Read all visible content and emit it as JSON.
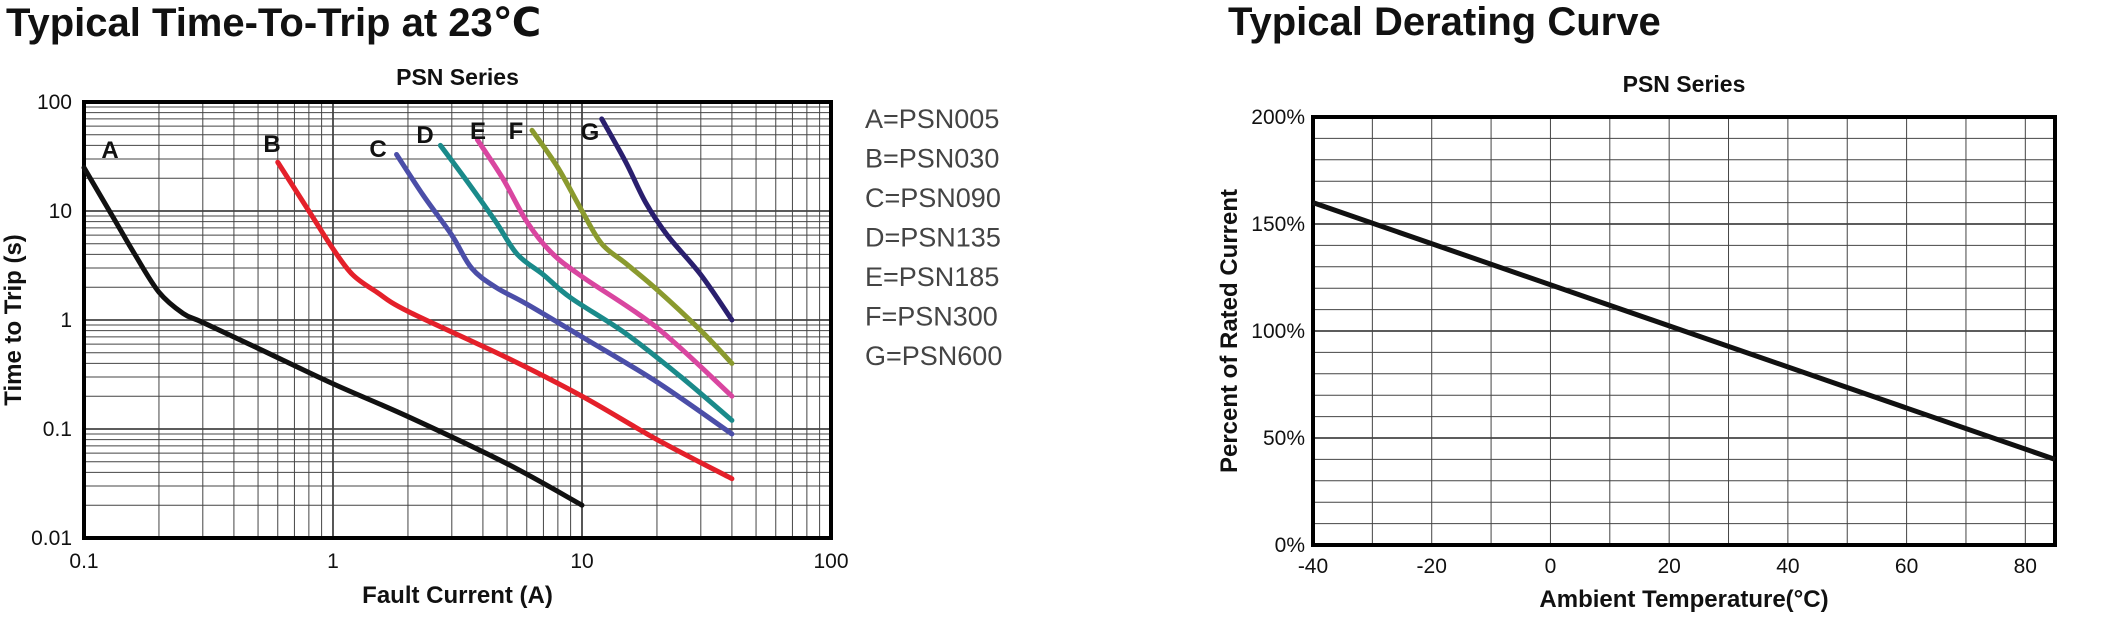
{
  "headings": {
    "left": "Typical Time-To-Trip at 23℃",
    "right": "Typical Derating Curve"
  },
  "chart_data": [
    {
      "type": "line",
      "title": "PSN Series",
      "xlabel": "Fault Current (A)",
      "ylabel": "Time to Trip (s)",
      "xscale": "log",
      "yscale": "log",
      "xlim": [
        0.1,
        100
      ],
      "ylim": [
        0.01,
        100
      ],
      "xticks": [
        "0.1",
        "1",
        "10",
        "100"
      ],
      "yticks": [
        "0.01",
        "0.1",
        "1",
        "10",
        "100"
      ],
      "grid": true,
      "legend_position": "right",
      "legend": [
        "A=PSN005",
        "B=PSN030",
        "C=PSN090",
        "D=PSN135",
        "E=PSN185",
        "F=PSN300",
        "G=PSN600"
      ],
      "series": [
        {
          "name": "A",
          "color": "#111111",
          "points": [
            [
              0.1,
              25
            ],
            [
              0.13,
              9
            ],
            [
              0.16,
              4
            ],
            [
              0.2,
              1.8
            ],
            [
              0.25,
              1.15
            ],
            [
              0.3,
              0.95
            ],
            [
              0.5,
              0.55
            ],
            [
              1,
              0.26
            ],
            [
              2,
              0.13
            ],
            [
              5,
              0.048
            ],
            [
              10,
              0.02
            ]
          ]
        },
        {
          "name": "B",
          "color": "#e4202a",
          "points": [
            [
              0.6,
              28
            ],
            [
              0.8,
              10
            ],
            [
              1,
              4.5
            ],
            [
              1.2,
              2.6
            ],
            [
              1.5,
              1.8
            ],
            [
              2,
              1.2
            ],
            [
              5,
              0.45
            ],
            [
              10,
              0.2
            ],
            [
              20,
              0.08
            ],
            [
              40,
              0.035
            ]
          ]
        },
        {
          "name": "C",
          "color": "#4b4ea8",
          "points": [
            [
              1.8,
              33
            ],
            [
              2.3,
              14
            ],
            [
              3,
              6
            ],
            [
              3.6,
              3
            ],
            [
              4.5,
              2
            ],
            [
              6,
              1.4
            ],
            [
              10,
              0.7
            ],
            [
              20,
              0.27
            ],
            [
              40,
              0.09
            ]
          ]
        },
        {
          "name": "D",
          "color": "#1a8a8a",
          "points": [
            [
              2.7,
              40
            ],
            [
              3.5,
              18
            ],
            [
              4.5,
              8
            ],
            [
              5.5,
              4
            ],
            [
              7,
              2.6
            ],
            [
              9,
              1.6
            ],
            [
              15,
              0.75
            ],
            [
              25,
              0.3
            ],
            [
              40,
              0.12
            ]
          ]
        },
        {
          "name": "E",
          "color": "#d946a0",
          "points": [
            [
              3.8,
              45
            ],
            [
              4.8,
              20
            ],
            [
              6,
              8
            ],
            [
              7.5,
              4.2
            ],
            [
              10,
              2.5
            ],
            [
              20,
              0.85
            ],
            [
              40,
              0.2
            ]
          ]
        },
        {
          "name": "F",
          "color": "#8a9a2e",
          "points": [
            [
              6.3,
              55
            ],
            [
              8,
              25
            ],
            [
              10,
              10
            ],
            [
              12,
              5
            ],
            [
              15,
              3.3
            ],
            [
              20,
              1.9
            ],
            [
              30,
              0.8
            ],
            [
              40,
              0.4
            ]
          ]
        },
        {
          "name": "G",
          "color": "#2a1f6e",
          "points": [
            [
              12,
              70
            ],
            [
              15,
              28
            ],
            [
              18,
              12
            ],
            [
              22,
              6
            ],
            [
              30,
              2.6
            ],
            [
              40,
              1
            ]
          ]
        }
      ]
    },
    {
      "type": "line",
      "title": "PSN Series",
      "xlabel": "Ambient Temperature(°C)",
      "ylabel": "Percent of Rated Current",
      "xlim": [
        -40,
        85
      ],
      "ylim": [
        0,
        200
      ],
      "xticks": [
        "-40",
        "-20",
        "0",
        "20",
        "40",
        "60",
        "80"
      ],
      "yticks": [
        "0%",
        "50%",
        "100%",
        "150%",
        "200%"
      ],
      "grid": true,
      "series": [
        {
          "color": "#111111",
          "points": [
            [
              -40,
              160
            ],
            [
              85,
              40
            ]
          ]
        }
      ]
    }
  ]
}
